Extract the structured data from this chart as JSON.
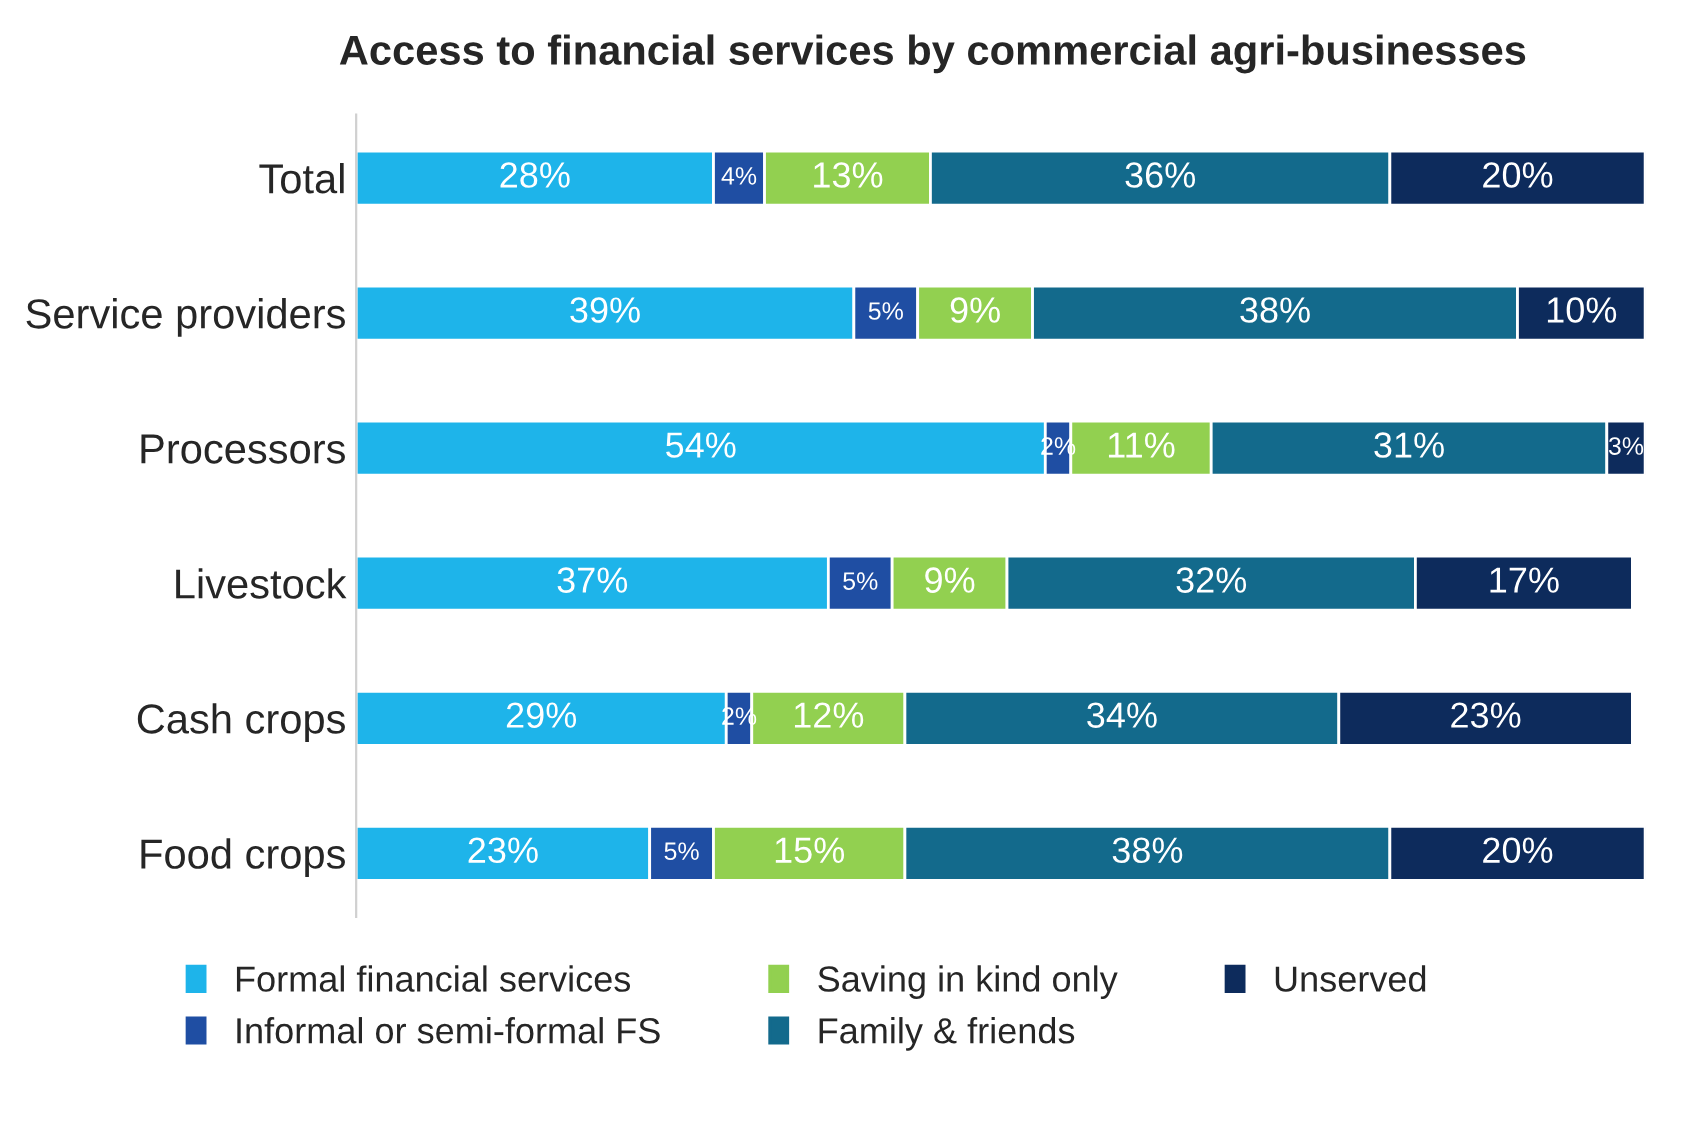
{
  "chart_data": {
    "type": "bar",
    "orientation": "horizontal",
    "stacked": true,
    "title": "Access to financial services by commercial agri-businesses",
    "categories": [
      "Total",
      "Service providers",
      "Processors",
      "Livestock",
      "Cash crops",
      "Food crops"
    ],
    "series": [
      {
        "name": "Formal financial services",
        "color": "#1eb4ea",
        "values": [
          28,
          39,
          54,
          37,
          29,
          23
        ],
        "value_labels": [
          "28%",
          "39%",
          "54%",
          "37%",
          "29%",
          "23%"
        ]
      },
      {
        "name": "Informal or semi-formal FS",
        "color": "#1f4ea3",
        "values": [
          4,
          5,
          2,
          5,
          2,
          5
        ],
        "value_labels": [
          "4%",
          "5%",
          "2%",
          "5%",
          "2%",
          "5%"
        ]
      },
      {
        "name": "Saving in kind only",
        "color": "#92d050",
        "values": [
          13,
          9,
          11,
          9,
          12,
          15
        ],
        "value_labels": [
          "13%",
          "9%",
          "11%",
          "9%",
          "12%",
          "15%"
        ]
      },
      {
        "name": "Family & friends",
        "color": "#136a8c",
        "values": [
          36,
          38,
          31,
          32,
          34,
          38
        ],
        "value_labels": [
          "36%",
          "38%",
          "31%",
          "32%",
          "34%",
          "38%"
        ]
      },
      {
        "name": "Unserved",
        "color": "#0d2b5c",
        "values": [
          20,
          10,
          3,
          17,
          23,
          20
        ],
        "value_labels": [
          "20%",
          "10%",
          "3%",
          "17%",
          "23%",
          "20%"
        ]
      }
    ],
    "legend": "bottom",
    "grid": false
  }
}
